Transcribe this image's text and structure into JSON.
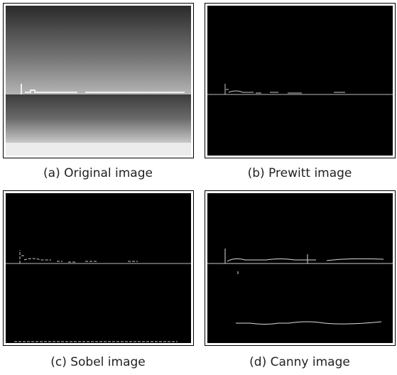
{
  "panels": [
    {
      "caption": "(a) Original image"
    },
    {
      "caption": "(b) Prewitt image"
    },
    {
      "caption": "(c) Sobel image"
    },
    {
      "caption": "(d) Canny image"
    }
  ]
}
